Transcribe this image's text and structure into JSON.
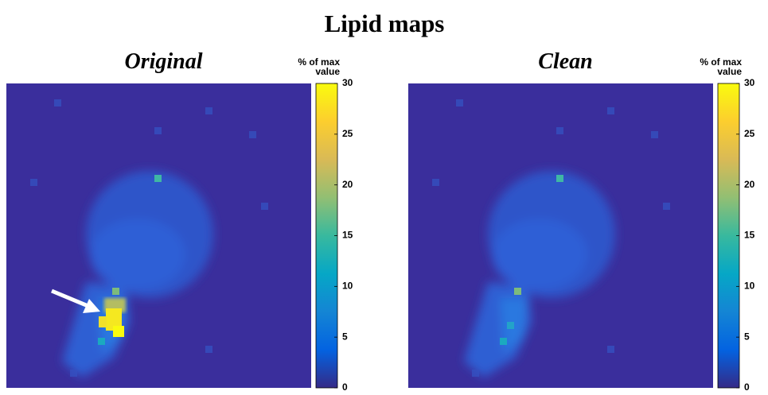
{
  "title": "Lipid maps",
  "chart_data": [
    {
      "type": "heatmap",
      "title": "Original",
      "colorbar_label": [
        "% of max",
        "value"
      ],
      "ylim": [
        0,
        30
      ],
      "yticks": [
        0,
        5,
        10,
        15,
        20,
        25,
        30
      ],
      "colormap": [
        "#352a87",
        "#0363e1",
        "#1485d4",
        "#06a7c6",
        "#38b99e",
        "#92bf73",
        "#d9ba56",
        "#fcce2e",
        "#f9fb0e"
      ]
    },
    {
      "type": "heatmap",
      "title": "Clean",
      "colorbar_label": [
        "% of max",
        "value"
      ],
      "ylim": [
        0,
        30
      ],
      "yticks": [
        0,
        5,
        10,
        15,
        20,
        25,
        30
      ],
      "colormap": [
        "#352a87",
        "#0363e1",
        "#1485d4",
        "#06a7c6",
        "#38b99e",
        "#92bf73",
        "#d9ba56",
        "#fcce2e",
        "#f9fb0e"
      ]
    }
  ]
}
